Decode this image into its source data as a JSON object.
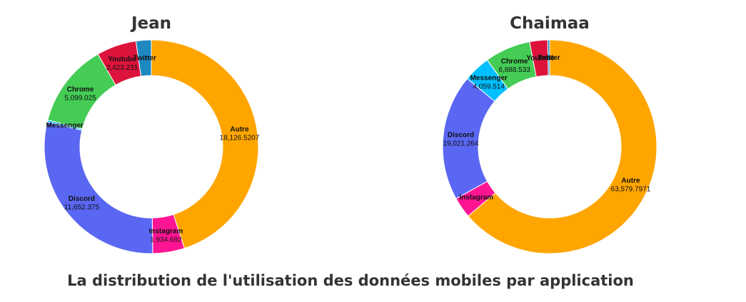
{
  "caption": "La distribution de l'utilisation des données mobiles par application",
  "chart_data": [
    {
      "type": "pie",
      "donut": true,
      "title": "Jean",
      "slices": [
        {
          "label": "Autre",
          "value": 18126.5207,
          "display": "18,126.5207",
          "color": "#FFA500"
        },
        {
          "label": "Instagram",
          "value": 1934.692,
          "display": "1,934.692",
          "color": "#FF1493"
        },
        {
          "label": "Discord",
          "value": 11652.375,
          "display": "11,652.375",
          "color": "#5A67F2"
        },
        {
          "label": "Messenger",
          "value": 120,
          "display": "",
          "color": "#00BFFF"
        },
        {
          "label": "Chrome",
          "value": 5099.025,
          "display": "5,099.025",
          "color": "#44CC55"
        },
        {
          "label": "Youtube",
          "value": 2423.231,
          "display": "2,423.231",
          "color": "#DC143C"
        },
        {
          "label": "Twitter",
          "value": 930,
          "display": "",
          "color": "#1E88C0"
        }
      ]
    },
    {
      "type": "pie",
      "donut": true,
      "title": "Chaimaa",
      "slices": [
        {
          "label": "Autre",
          "value": 63579.7971,
          "display": "63,579.7971",
          "color": "#FFA500"
        },
        {
          "label": "Instagram",
          "value": 3150,
          "display": "",
          "color": "#FF1493"
        },
        {
          "label": "Discord",
          "value": 19021.264,
          "display": "19,021.264",
          "color": "#5A67F2"
        },
        {
          "label": "Messenger",
          "value": 4059.514,
          "display": "4,059.514",
          "color": "#00BFFF"
        },
        {
          "label": "Chrome",
          "value": 6888.533,
          "display": "6,888.533",
          "color": "#44CC55"
        },
        {
          "label": "Youtube",
          "value": 2700,
          "display": "",
          "color": "#DC143C"
        },
        {
          "label": "Twitter",
          "value": 300,
          "display": "",
          "color": "#1E88C0"
        }
      ]
    }
  ]
}
